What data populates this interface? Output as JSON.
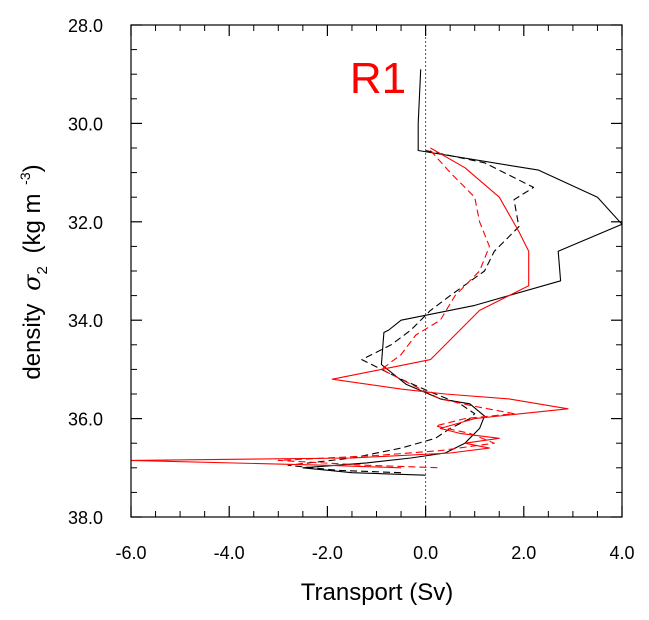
{
  "chart_data": {
    "type": "line",
    "title": "R1",
    "title_color": "#ff0000",
    "xlabel": "Transport (Sv)",
    "ylabel_main": "density",
    "ylabel_symbol": "σ",
    "ylabel_sub": "2",
    "ylabel_units": "(kg m",
    "ylabel_exp": "-3",
    "ylabel_close": ")",
    "xlim": [
      -6.0,
      4.0
    ],
    "ylim": [
      28.0,
      38.0
    ],
    "y_inverted": true,
    "grid": false,
    "zero_line": {
      "x": 0.0,
      "style": "dotted"
    },
    "xticks": [
      -6.0,
      -4.0,
      -2.0,
      0.0,
      2.0,
      4.0
    ],
    "xtick_labels": [
      "-6.0",
      "-4.0",
      "-2.0",
      "0.0",
      "2.0",
      "4.0"
    ],
    "yticks": [
      28.0,
      30.0,
      32.0,
      34.0,
      36.0,
      38.0
    ],
    "ytick_labels": [
      "28.0",
      "30.0",
      "32.0",
      "34.0",
      "36.0",
      "38.0"
    ],
    "series": [
      {
        "color": "#000000",
        "dash": "solid",
        "points": [
          [
            -0.1,
            28.9
          ],
          [
            -0.15,
            30.0
          ],
          [
            -0.15,
            30.55
          ],
          [
            2.3,
            30.95
          ],
          [
            3.5,
            31.5
          ],
          [
            4.0,
            32.05
          ],
          [
            2.7,
            32.6
          ],
          [
            2.75,
            33.2
          ],
          [
            1.0,
            33.7
          ],
          [
            -0.5,
            34.0
          ],
          [
            -0.75,
            34.2
          ],
          [
            -0.85,
            34.25
          ],
          [
            -0.9,
            34.9
          ],
          [
            -0.4,
            35.3
          ],
          [
            0.3,
            35.6
          ],
          [
            0.9,
            35.7
          ],
          [
            1.2,
            35.95
          ],
          [
            1.1,
            36.2
          ],
          [
            0.8,
            36.5
          ],
          [
            0.4,
            36.7
          ],
          [
            -0.3,
            36.8
          ],
          [
            -1.2,
            36.9
          ],
          [
            -2.5,
            37.0
          ],
          [
            -1.5,
            37.1
          ],
          [
            0.0,
            37.15
          ]
        ]
      },
      {
        "color": "#000000",
        "dash": "dashed",
        "points": [
          [
            0.0,
            30.55
          ],
          [
            1.2,
            30.8
          ],
          [
            2.2,
            31.3
          ],
          [
            1.8,
            31.55
          ],
          [
            1.9,
            32.1
          ],
          [
            1.4,
            32.6
          ],
          [
            1.2,
            33.0
          ],
          [
            0.5,
            33.5
          ],
          [
            0.1,
            33.8
          ],
          [
            -0.3,
            34.2
          ],
          [
            -0.7,
            34.5
          ],
          [
            -1.3,
            34.8
          ],
          [
            -0.5,
            35.2
          ],
          [
            0.2,
            35.5
          ],
          [
            0.7,
            35.7
          ],
          [
            1.0,
            35.9
          ],
          [
            0.9,
            36.0
          ],
          [
            0.5,
            36.2
          ],
          [
            0.2,
            36.4
          ],
          [
            -0.5,
            36.6
          ],
          [
            -1.5,
            36.8
          ],
          [
            -2.8,
            36.95
          ],
          [
            -1.8,
            37.05
          ],
          [
            -0.5,
            37.1
          ]
        ]
      },
      {
        "color": "#ff0000",
        "dash": "solid",
        "points": [
          [
            0.1,
            30.5
          ],
          [
            0.8,
            30.9
          ],
          [
            1.5,
            31.5
          ],
          [
            1.9,
            32.2
          ],
          [
            2.1,
            32.6
          ],
          [
            2.1,
            33.3
          ],
          [
            1.1,
            33.8
          ],
          [
            0.5,
            34.4
          ],
          [
            0.1,
            34.8
          ],
          [
            -0.9,
            35.0
          ],
          [
            -1.9,
            35.2
          ],
          [
            -0.5,
            35.4
          ],
          [
            0.4,
            35.5
          ],
          [
            1.7,
            35.6
          ],
          [
            2.9,
            35.8
          ],
          [
            1.0,
            36.0
          ],
          [
            0.3,
            36.2
          ],
          [
            0.7,
            36.3
          ],
          [
            1.5,
            36.4
          ],
          [
            0.8,
            36.5
          ],
          [
            1.3,
            36.6
          ],
          [
            0.5,
            36.7
          ],
          [
            -1.5,
            36.8
          ],
          [
            -6.0,
            36.85
          ],
          [
            -2.0,
            36.95
          ],
          [
            -0.5,
            37.0
          ]
        ]
      },
      {
        "color": "#ff0000",
        "dash": "dashed",
        "points": [
          [
            0.1,
            30.55
          ],
          [
            0.5,
            31.0
          ],
          [
            1.0,
            31.5
          ],
          [
            1.1,
            32.0
          ],
          [
            1.3,
            32.5
          ],
          [
            1.1,
            33.0
          ],
          [
            0.6,
            33.5
          ],
          [
            0.3,
            34.0
          ],
          [
            -0.2,
            34.3
          ],
          [
            -0.5,
            34.7
          ],
          [
            -0.9,
            35.0
          ],
          [
            -0.3,
            35.3
          ],
          [
            0.3,
            35.6
          ],
          [
            1.0,
            35.75
          ],
          [
            1.8,
            35.9
          ],
          [
            0.8,
            36.0
          ],
          [
            0.2,
            36.15
          ],
          [
            0.9,
            36.3
          ],
          [
            1.4,
            36.5
          ],
          [
            0.3,
            36.65
          ],
          [
            -1.0,
            36.75
          ],
          [
            -3.0,
            36.85
          ],
          [
            -1.2,
            36.95
          ],
          [
            0.3,
            37.0
          ]
        ]
      }
    ]
  }
}
